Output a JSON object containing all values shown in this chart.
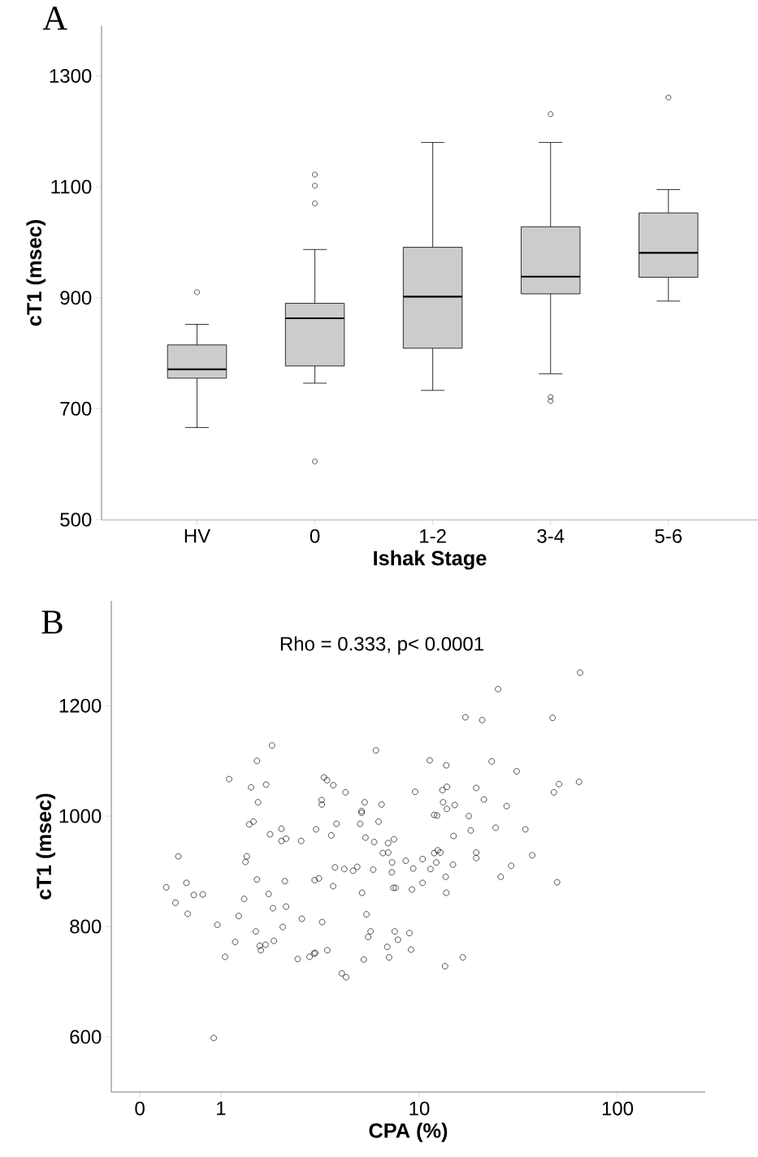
{
  "chart_data": [
    {
      "type": "box",
      "xlabel": "Ishak Stage",
      "ylabel": "cT1 (msec)",
      "annotations": [
        "A"
      ],
      "categories": [
        "HV",
        "0",
        "1-2",
        "3-4",
        "5-6"
      ],
      "color": "#cccccc",
      "marker": "circle",
      "boxes": [
        {
          "low": 666,
          "q1": 755,
          "median": 771,
          "q3": 815,
          "high": 852,
          "outliers": [
            910
          ]
        },
        {
          "low": 746,
          "q1": 777,
          "median": 863,
          "q3": 890,
          "high": 987,
          "outliers": [
            1122,
            1102,
            1070,
            605
          ]
        },
        {
          "low": 733,
          "q1": 809,
          "median": 902,
          "q3": 991,
          "high": 1180
        },
        {
          "low": 763,
          "q1": 907,
          "median": 938,
          "q3": 1028,
          "high": 1180,
          "outliers": [
            1231,
            721,
            714
          ]
        },
        {
          "low": 894,
          "q1": 937,
          "median": 981,
          "q3": 1053,
          "high": 1095,
          "outliers": [
            1261
          ]
        }
      ],
      "ylim": [
        500,
        1390
      ],
      "yticks": [
        500,
        700,
        900,
        1100,
        1300
      ]
    },
    {
      "type": "scatter",
      "xlabel": "CPA (%)",
      "ylabel": "cT1 (msec)",
      "annotations": [
        "B",
        "Rho = 0.333, p< 0.0001"
      ],
      "color": "#000000",
      "marker": "circle",
      "log": "x",
      "x": [
        1.46,
        1.39,
        2.02,
        1.77,
        3.02,
        3.83,
        5.04,
        6.24,
        5.13,
        3.6,
        2.02,
        2.13,
        2.54,
        5.36,
        5.93,
        6.97,
        7.46,
        6.56,
        6.98,
        0.61,
        1.35,
        1.33,
        7.3,
        8.55,
        10.4,
        3.76,
        4.19,
        4.64,
        4.87,
        5.86,
        7.28,
        9.33,
        1.52,
        2.1,
        2.97,
        3.12,
        3.68,
        7.41,
        7.61,
        9.19,
        10.4,
        0.53,
        0.67,
        0.73,
        0.81,
        0.59,
        0.68,
        1.31,
        1.74,
        1.83,
        2.13,
        5.15,
        0.96,
        1.23,
        2.56,
        3.24,
        5.42,
        1.5,
        2.05,
        5.69,
        5.53,
        7.53,
        8.93,
        7.82,
        1.18,
        1.57,
        1.68,
        1.85,
        1.59,
        6.9,
        9.1,
        1.05,
        2.44,
        2.8,
        2.95,
        2.99,
        3.44,
        5.25,
        7.05,
        4.07,
        4.28,
        0.92,
        1.81,
        1.52,
        6.05,
        1.1,
        1.42,
        1.69,
        1.54,
        3.31,
        3.43,
        3.69,
        4.25,
        9.54,
        3.22,
        3.23,
        5.31,
        6.46,
        5.12,
        64.8,
        25.0,
        17.1,
        20.8,
        47.1,
        11.3,
        13.7,
        23.2,
        31.0,
        13.1,
        13.8,
        19.4,
        50.7,
        64.0,
        47.8,
        13.2,
        15.1,
        13.8,
        21.2,
        27.6,
        11.9,
        12.3,
        17.8,
        14.9,
        18.2,
        24.3,
        34.3,
        12.4,
        11.9,
        12.8,
        19.4,
        19.4,
        37.2,
        12.2,
        14.8,
        29.1,
        11.4,
        13.6,
        25.8,
        49.6,
        13.7,
        16.6,
        13.5
      ],
      "values": [
        990,
        985,
        977,
        967,
        976,
        986,
        986,
        990,
        1006,
        965,
        955,
        959,
        955,
        961,
        953,
        951,
        958,
        933,
        934,
        927,
        927,
        917,
        916,
        919,
        922,
        907,
        904,
        901,
        908,
        903,
        898,
        905,
        885,
        882,
        884,
        887,
        873,
        870,
        870,
        867,
        879,
        871,
        879,
        857,
        858,
        843,
        823,
        850,
        859,
        833,
        836,
        861,
        803,
        819,
        814,
        808,
        822,
        791,
        799,
        791,
        781,
        791,
        788,
        776,
        772,
        765,
        767,
        774,
        757,
        763,
        758,
        745,
        741,
        745,
        751,
        752,
        757,
        740,
        744,
        715,
        708,
        598,
        1128,
        1100,
        1119,
        1067,
        1052,
        1057,
        1025,
        1070,
        1065,
        1056,
        1043,
        1044,
        1029,
        1021,
        1025,
        1021,
        1009,
        1260,
        1230,
        1179,
        1174,
        1178,
        1101,
        1092,
        1099,
        1081,
        1047,
        1053,
        1051,
        1058,
        1062,
        1043,
        1025,
        1020,
        1013,
        1030,
        1018,
        1002,
        1001,
        1000,
        964,
        974,
        979,
        976,
        938,
        933,
        934,
        934,
        924,
        929,
        916,
        912,
        910,
        904,
        890,
        890,
        880,
        861,
        744,
        728
      ],
      "xlim": [
        0.28,
        277
      ],
      "xticks": [
        {
          "value": 0.39,
          "label": "0"
        },
        1,
        10,
        100
      ],
      "ylim": [
        500,
        1390
      ],
      "yticks": [
        600,
        800,
        1000,
        1200
      ]
    }
  ]
}
